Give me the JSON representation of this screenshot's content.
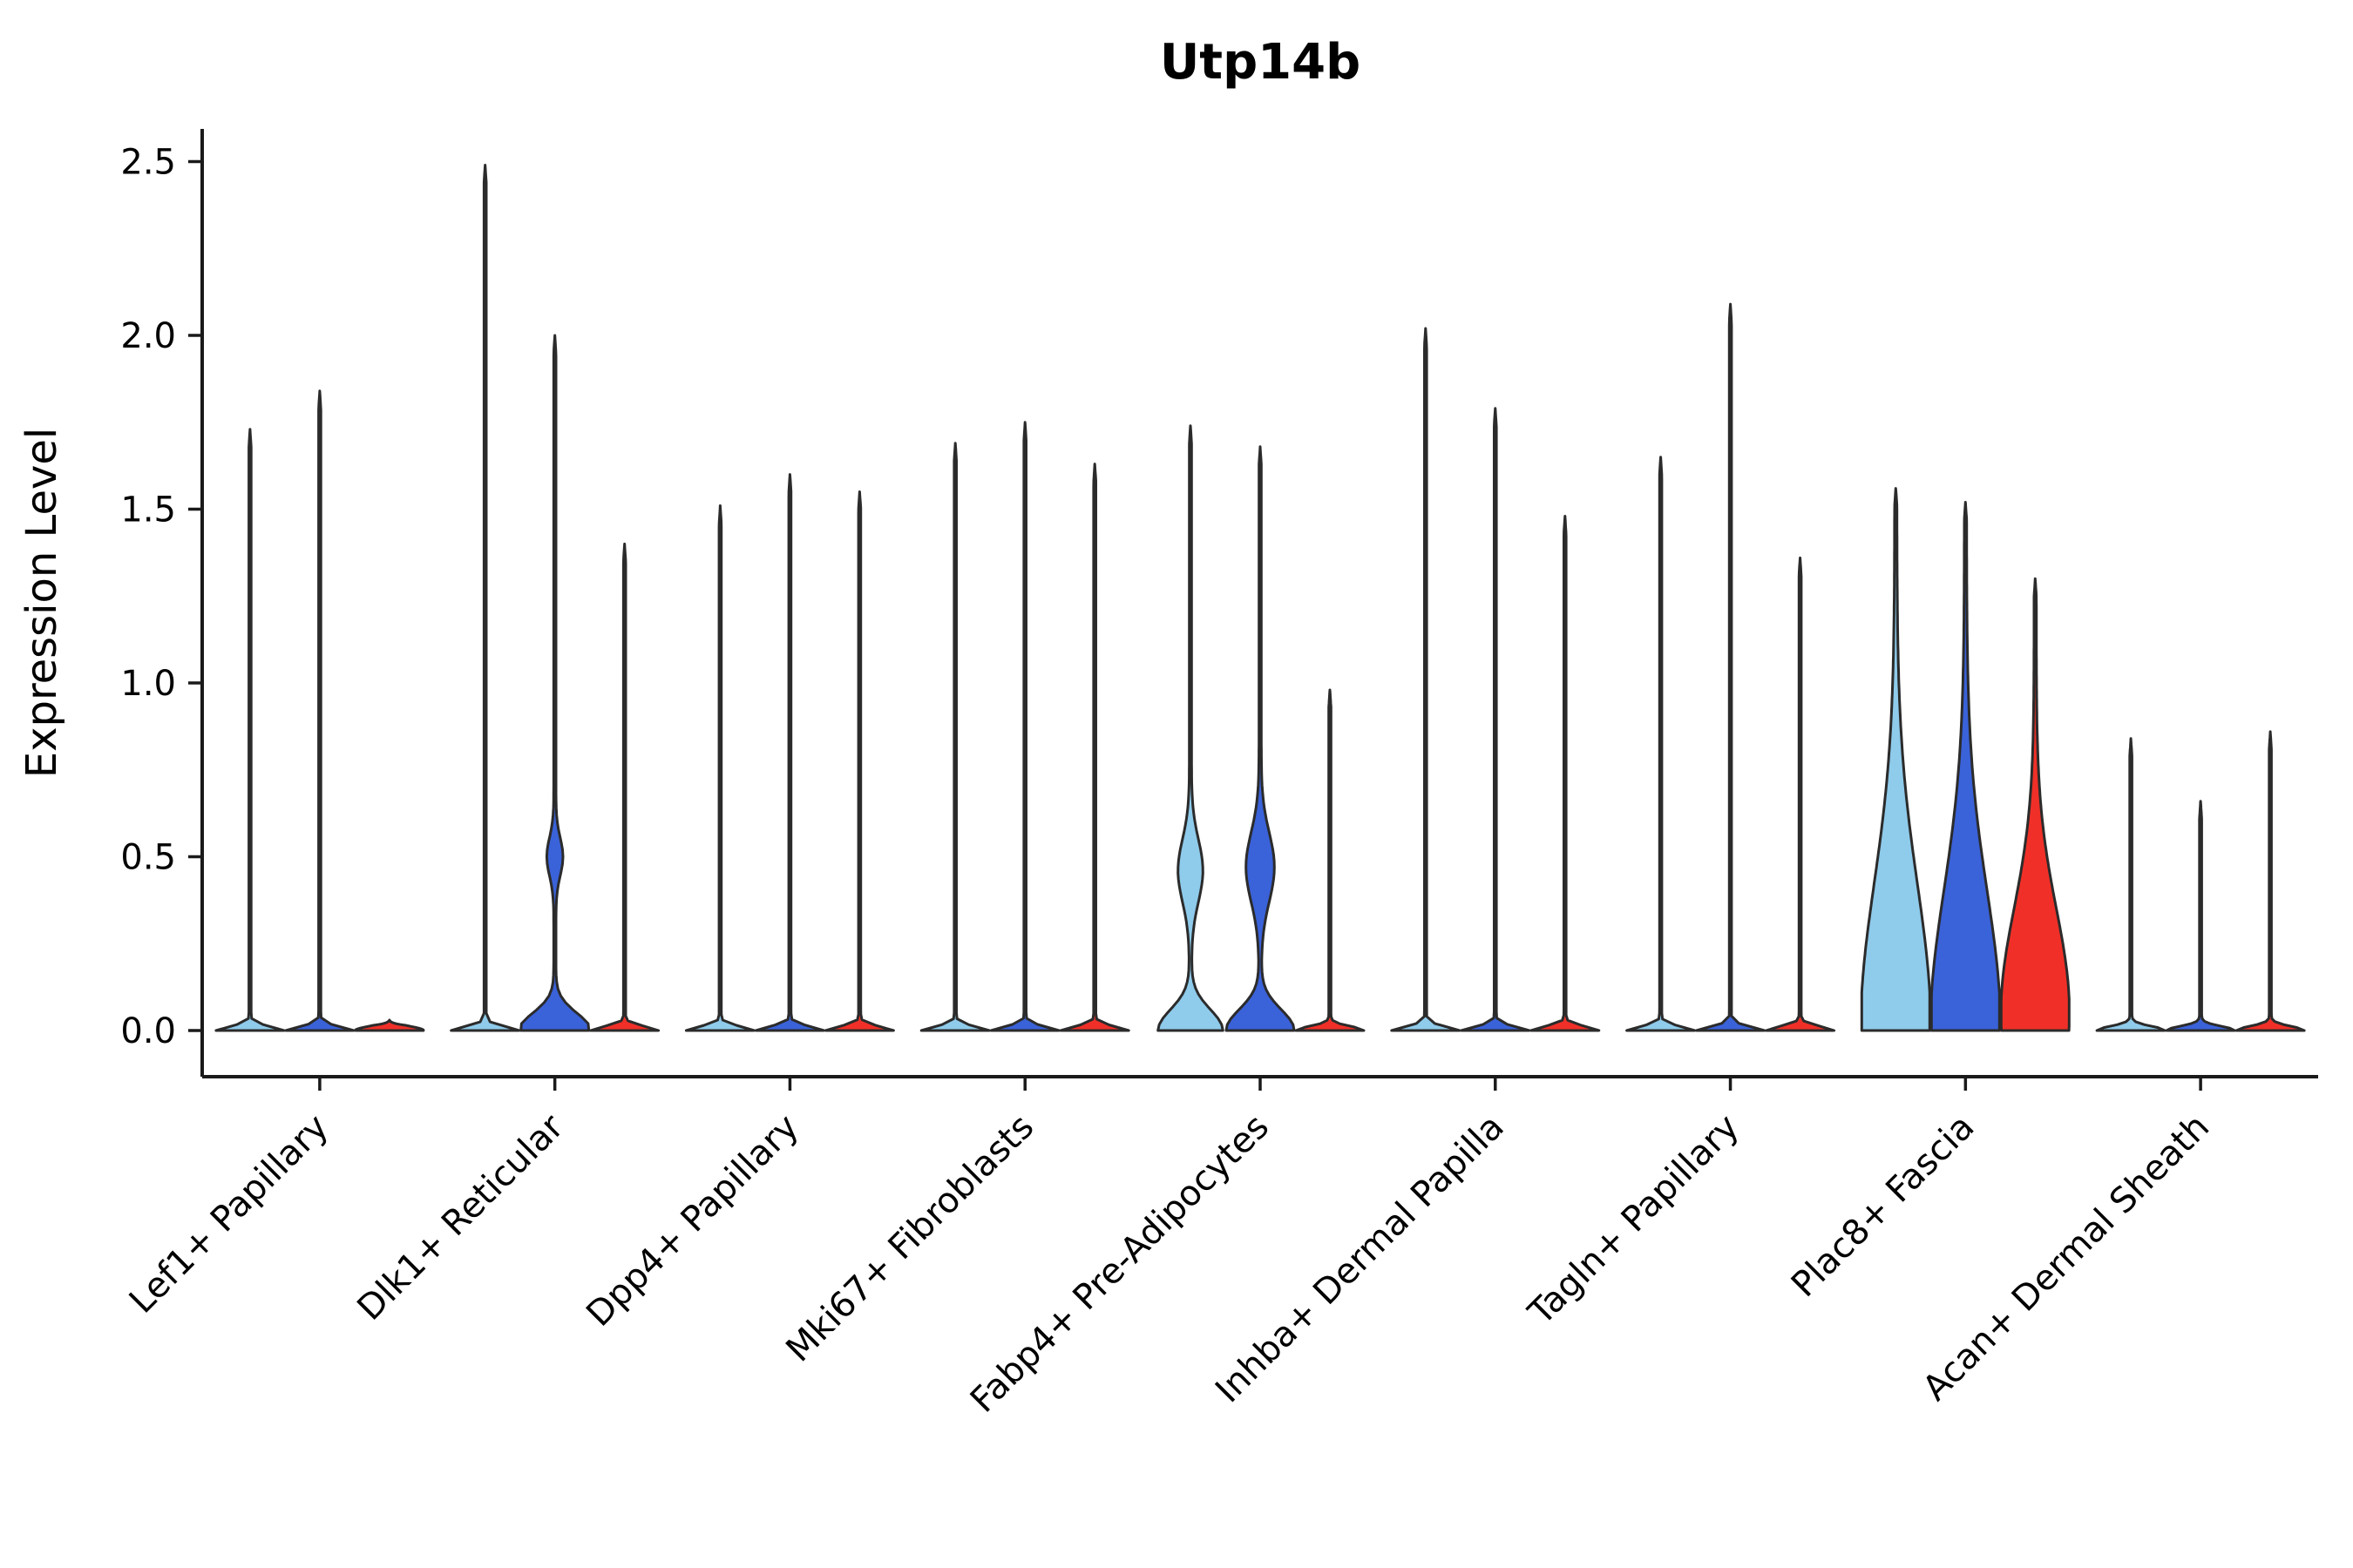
{
  "page": {
    "background": "#ffffff"
  },
  "chart_data": {
    "type": "violin",
    "title": "Utp14b",
    "ylabel": "Expression Level",
    "xlabel": "",
    "ylim": [
      0,
      2.5
    ],
    "yticks": [
      0,
      0.5,
      1.0,
      1.5,
      2.0,
      2.5
    ],
    "ytick_labels": [
      "0.0",
      "0.5",
      "1.0",
      "1.5",
      "2.0",
      "2.5"
    ],
    "grid": false,
    "legend": "none",
    "groups_per_category": 3,
    "group_colors": [
      "#8FCBEB",
      "#3A62D9",
      "#F03028"
    ],
    "stroke_color": "#2b2b2b",
    "categories": [
      "Lef1+ Papillary",
      "Dlk1+ Reticular",
      "Dpp4+ Papillary",
      "Mki67+ Fibroblasts",
      "Fabp4+ Pre-Adipocytes",
      "Inhba+ Dermal Papilla",
      "Tagln+ Papillary",
      "Plac8+ Fascia",
      "Acan+ Dermal Sheath"
    ],
    "violins": [
      {
        "category": "Lef1+ Papillary",
        "group": 0,
        "max": 1.73,
        "bumps": [
          [
            0,
            0.012,
            38
          ]
        ]
      },
      {
        "category": "Lef1+ Papillary",
        "group": 1,
        "max": 1.84,
        "bumps": [
          [
            0,
            0.012,
            38
          ]
        ]
      },
      {
        "category": "Lef1+ Papillary",
        "group": 2,
        "max": 0.03,
        "bumps": [
          [
            0,
            0.012,
            38
          ]
        ]
      },
      {
        "category": "Dlk1+ Reticular",
        "group": 0,
        "max": 2.49,
        "bumps": [
          [
            0,
            0.012,
            38
          ]
        ]
      },
      {
        "category": "Dlk1+ Reticular",
        "group": 1,
        "max": 2.0,
        "bumps": [
          [
            0,
            0.05,
            40
          ],
          [
            0.5,
            0.055,
            8
          ]
        ]
      },
      {
        "category": "Dlk1+ Reticular",
        "group": 2,
        "max": 1.4,
        "bumps": [
          [
            0,
            0.012,
            38
          ]
        ]
      },
      {
        "category": "Dpp4+ Papillary",
        "group": 0,
        "max": 1.51,
        "bumps": [
          [
            0,
            0.012,
            38
          ]
        ]
      },
      {
        "category": "Dpp4+ Papillary",
        "group": 1,
        "max": 1.6,
        "bumps": [
          [
            0,
            0.012,
            38
          ]
        ]
      },
      {
        "category": "Dpp4+ Papillary",
        "group": 2,
        "max": 1.55,
        "bumps": [
          [
            0,
            0.012,
            38
          ]
        ]
      },
      {
        "category": "Mki67+ Fibroblasts",
        "group": 0,
        "max": 1.69,
        "bumps": [
          [
            0,
            0.012,
            38
          ]
        ]
      },
      {
        "category": "Mki67+ Fibroblasts",
        "group": 1,
        "max": 1.75,
        "bumps": [
          [
            0,
            0.012,
            38
          ]
        ]
      },
      {
        "category": "Mki67+ Fibroblasts",
        "group": 2,
        "max": 1.63,
        "bumps": [
          [
            0,
            0.012,
            38
          ]
        ]
      },
      {
        "category": "Fabp4+ Pre-Adipocytes",
        "group": 0,
        "max": 1.74,
        "bumps": [
          [
            0,
            0.06,
            36
          ],
          [
            0.46,
            0.09,
            13
          ]
        ]
      },
      {
        "category": "Fabp4+ Pre-Adipocytes",
        "group": 1,
        "max": 1.68,
        "bumps": [
          [
            0,
            0.06,
            38
          ],
          [
            0.47,
            0.1,
            15
          ]
        ]
      },
      {
        "category": "Fabp4+ Pre-Adipocytes",
        "group": 2,
        "max": 0.98,
        "bumps": [
          [
            0,
            0.012,
            38
          ]
        ]
      },
      {
        "category": "Inhba+ Dermal Papilla",
        "group": 0,
        "max": 2.02,
        "bumps": [
          [
            0,
            0.012,
            38
          ]
        ]
      },
      {
        "category": "Inhba+ Dermal Papilla",
        "group": 1,
        "max": 1.79,
        "bumps": [
          [
            0,
            0.012,
            38
          ]
        ]
      },
      {
        "category": "Inhba+ Dermal Papilla",
        "group": 2,
        "max": 1.48,
        "bumps": [
          [
            0,
            0.012,
            38
          ]
        ]
      },
      {
        "category": "Tagln+ Papillary",
        "group": 0,
        "max": 1.65,
        "bumps": [
          [
            0,
            0.012,
            38
          ]
        ]
      },
      {
        "category": "Tagln+ Papillary",
        "group": 1,
        "max": 2.09,
        "bumps": [
          [
            0,
            0.012,
            38
          ]
        ]
      },
      {
        "category": "Tagln+ Papillary",
        "group": 2,
        "max": 1.36,
        "bumps": [
          [
            0,
            0.012,
            38
          ]
        ]
      },
      {
        "category": "Plac8+ Fascia",
        "group": 0,
        "max": 1.56,
        "bumps": [
          [
            0,
            0.42,
            39
          ]
        ]
      },
      {
        "category": "Plac8+ Fascia",
        "group": 1,
        "max": 1.52,
        "bumps": [
          [
            0,
            0.4,
            39
          ]
        ]
      },
      {
        "category": "Plac8+ Fascia",
        "group": 2,
        "max": 1.3,
        "bumps": [
          [
            0.05,
            0.3,
            38
          ]
        ]
      },
      {
        "category": "Acan+ Dermal Sheath",
        "group": 0,
        "max": 0.84,
        "bumps": [
          [
            0,
            0.012,
            38
          ]
        ]
      },
      {
        "category": "Acan+ Dermal Sheath",
        "group": 1,
        "max": 0.66,
        "bumps": [
          [
            0,
            0.012,
            38
          ]
        ]
      },
      {
        "category": "Acan+ Dermal Sheath",
        "group": 2,
        "max": 0.86,
        "bumps": [
          [
            0,
            0.012,
            38
          ]
        ]
      }
    ]
  }
}
